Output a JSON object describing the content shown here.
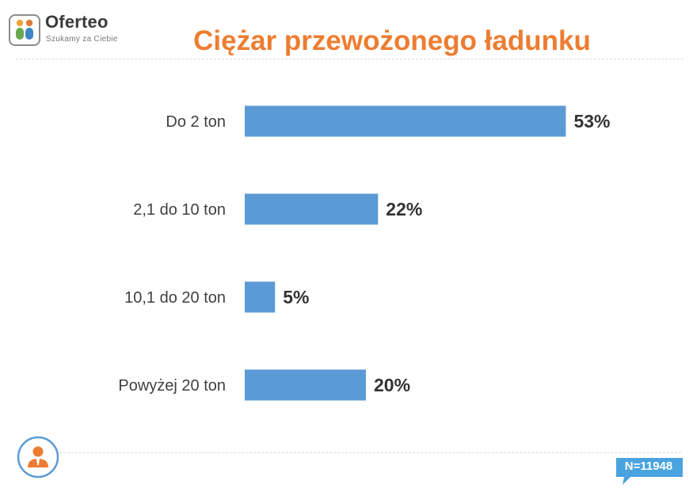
{
  "brand": {
    "name": "Oferteo",
    "tagline": "Szukamy za Ciebie"
  },
  "colors": {
    "title": "#ed7d31",
    "bar": "#5b9bd5",
    "label": "#404040",
    "value": "#333333",
    "badge": "#4aa3df"
  },
  "icons": [
    "oferteo-logo-icon",
    "person-icon"
  ],
  "sample_size": "N=11948",
  "chart_data": {
    "type": "bar",
    "orientation": "horizontal",
    "title": "Ciężar przewożonego ładunku",
    "categories": [
      "Do 2 ton",
      "2,1 do 10 ton",
      "10,1 do 20 ton",
      "Powyżej 20 ton"
    ],
    "values": [
      53,
      22,
      5,
      20
    ],
    "value_labels": [
      "53%",
      "22%",
      "5%",
      "20%"
    ],
    "unit": "%",
    "xlim": [
      0,
      100
    ],
    "grid": false,
    "legend": "none"
  }
}
